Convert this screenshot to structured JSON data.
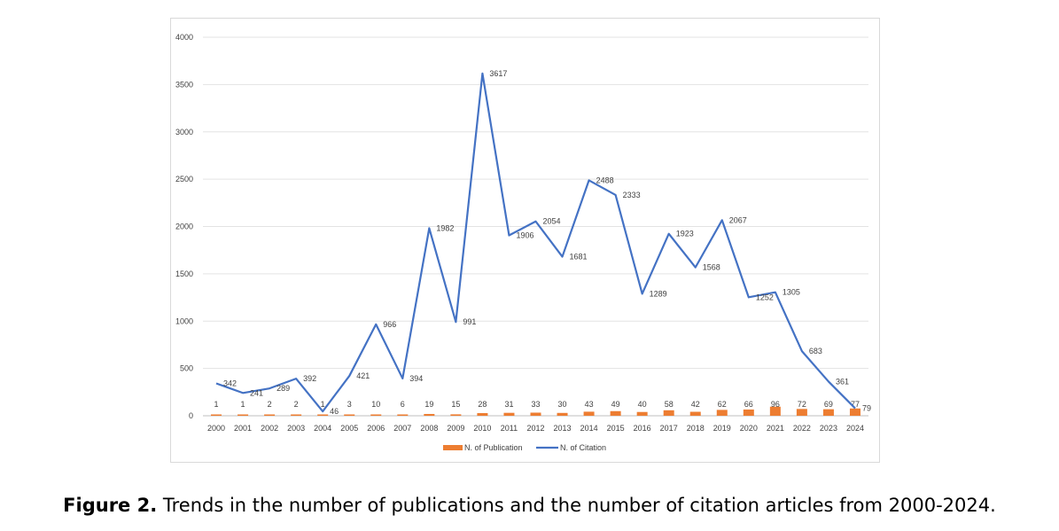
{
  "chart_data": {
    "type": "bar+line",
    "categories": [
      "2000",
      "2001",
      "2002",
      "2003",
      "2004",
      "2005",
      "2006",
      "2007",
      "2008",
      "2009",
      "2010",
      "2011",
      "2012",
      "2013",
      "2014",
      "2015",
      "2016",
      "2017",
      "2018",
      "2019",
      "2020",
      "2021",
      "2022",
      "2023",
      "2024"
    ],
    "series": [
      {
        "name": "N. of Publication",
        "type": "bar",
        "color": "#ed7d31",
        "values": [
          1,
          1,
          2,
          2,
          1,
          3,
          10,
          6,
          19,
          15,
          28,
          31,
          33,
          30,
          43,
          49,
          40,
          58,
          42,
          62,
          66,
          96,
          72,
          69,
          77
        ]
      },
      {
        "name": "N. of Citation",
        "type": "line",
        "color": "#4472c4",
        "values": [
          342,
          241,
          289,
          392,
          46,
          421,
          966,
          394,
          1982,
          991,
          3617,
          1906,
          2054,
          1681,
          2488,
          2333,
          1289,
          1923,
          1568,
          2067,
          1252,
          1305,
          683,
          361,
          79
        ]
      }
    ],
    "ylim": [
      0,
      4000
    ],
    "yticks": [
      0,
      500,
      1000,
      1500,
      2000,
      2500,
      3000,
      3500,
      4000
    ],
    "grid": true,
    "legend": "bottom",
    "title": "",
    "xlabel": "",
    "ylabel": ""
  },
  "caption": {
    "label": "Figure 2.",
    "text": " Trends in the number of publications and the number of citation articles from 2000-2024."
  }
}
